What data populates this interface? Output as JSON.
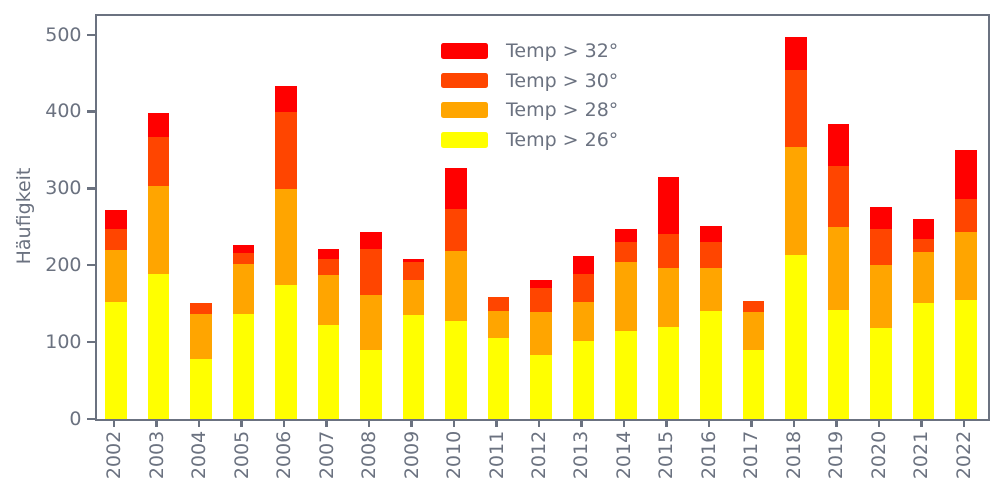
{
  "axis_color": "#6b7280",
  "chart_data": {
    "type": "bar",
    "stacked": true,
    "title": "",
    "xlabel": "",
    "ylabel": "Häufigkeit",
    "ylim": [
      0,
      525
    ],
    "yticks": [
      0,
      100,
      200,
      300,
      400,
      500
    ],
    "grid": false,
    "legend_position": "upper center",
    "legend_order_top_to_bottom": [
      "Temp > 32°",
      "Temp > 30°",
      "Temp > 28°",
      "Temp > 26°"
    ],
    "categories": [
      "2002",
      "2003",
      "2004",
      "2005",
      "2006",
      "2007",
      "2008",
      "2009",
      "2010",
      "2011",
      "2012",
      "2013",
      "2014",
      "2015",
      "2016",
      "2017",
      "2018",
      "2019",
      "2020",
      "2021",
      "2022"
    ],
    "series": [
      {
        "name": "Temp > 26°",
        "color": "#ffff00",
        "values": [
          152,
          189,
          78,
          137,
          175,
          122,
          90,
          135,
          127,
          106,
          84,
          101,
          114,
          120,
          141,
          90,
          214,
          142,
          118,
          151,
          155
        ]
      },
      {
        "name": "Temp > 28°",
        "color": "#ffa500",
        "values": [
          68,
          115,
          59,
          65,
          125,
          65,
          71,
          46,
          92,
          34,
          56,
          51,
          90,
          77,
          56,
          49,
          140,
          108,
          82,
          67,
          88
        ]
      },
      {
        "name": "Temp > 30°",
        "color": "#ff4500",
        "values": [
          27,
          63,
          14,
          14,
          100,
          21,
          60,
          24,
          55,
          19,
          30,
          37,
          26,
          44,
          33,
          15,
          100,
          79,
          48,
          17,
          44
        ]
      },
      {
        "name": "Temp > 32°",
        "color": "#ff0000",
        "values": [
          25,
          31,
          0,
          10,
          33,
          14,
          23,
          4,
          53,
          0,
          11,
          23,
          17,
          74,
          21,
          0,
          44,
          55,
          28,
          26,
          63
        ]
      }
    ]
  }
}
